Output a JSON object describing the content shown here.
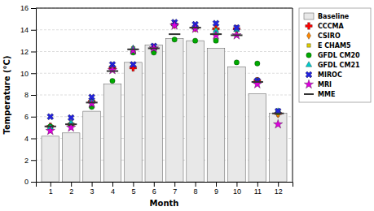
{
  "chart_data": {
    "type": "bar",
    "xlabel": "Month",
    "ylabel": "Temperature (°C)",
    "x": [
      1,
      2,
      3,
      4,
      5,
      6,
      7,
      8,
      9,
      10,
      11,
      12
    ],
    "xlim": [
      0.3,
      12.7
    ],
    "xticks": [
      1,
      2,
      3,
      4,
      5,
      6,
      7,
      8,
      9,
      10,
      11,
      12
    ],
    "ylim": [
      0,
      16
    ],
    "yticks": [
      0,
      2,
      4,
      6,
      8,
      10,
      12,
      14,
      16
    ],
    "grid": true,
    "legend": "right",
    "series": [
      {
        "name": "Baseline",
        "type": "bar",
        "color": "#e8e8e8",
        "values": [
          4.2,
          4.5,
          6.5,
          9.0,
          11.0,
          12.6,
          13.2,
          13.0,
          12.3,
          10.6,
          8.1,
          6.3
        ]
      },
      {
        "name": "CCCMA",
        "type": "scatter",
        "marker": "plus",
        "color": "red",
        "values": [
          5.1,
          5.3,
          7.4,
          10.5,
          10.5,
          12.3,
          14.5,
          14.2,
          14.1,
          14.1,
          9.3,
          6.3
        ]
      },
      {
        "name": "CSIRO",
        "type": "scatter",
        "marker": "diamond",
        "color": "#ff8800",
        "values": [
          4.8,
          5.2,
          7.3,
          10.4,
          12.2,
          12.3,
          14.4,
          14.1,
          13.9,
          13.9,
          9.2,
          6.2
        ]
      },
      {
        "name": "E CHAM5",
        "type": "scatter",
        "marker": "square",
        "color": "#ddcc00",
        "values": [
          5.0,
          5.3,
          7.5,
          10.6,
          12.3,
          12.4,
          14.4,
          14.1,
          14.0,
          14.0,
          9.3,
          6.4
        ]
      },
      {
        "name": "GFDL CM20",
        "type": "scatter",
        "marker": "circle",
        "color": "#00aa00",
        "values": [
          5.1,
          5.3,
          6.9,
          9.3,
          11.9,
          11.9,
          13.1,
          13.0,
          13.0,
          11.0,
          10.9,
          6.4
        ]
      },
      {
        "name": "GFDL CM21",
        "type": "scatter",
        "marker": "triangle",
        "color": "#00cccc",
        "values": [
          5.0,
          5.4,
          7.5,
          10.7,
          12.3,
          12.3,
          14.5,
          14.2,
          13.9,
          14.0,
          9.3,
          6.5
        ]
      },
      {
        "name": "MIROC",
        "type": "scatter",
        "marker": "x",
        "color": "#2222dd",
        "values": [
          6.0,
          5.9,
          7.8,
          10.8,
          10.8,
          12.5,
          14.7,
          14.5,
          14.6,
          14.2,
          9.3,
          6.5
        ]
      },
      {
        "name": "MRI",
        "type": "scatter",
        "marker": "star",
        "color": "#dd00dd",
        "values": [
          4.7,
          5.0,
          7.2,
          10.3,
          12.1,
          12.3,
          14.4,
          14.1,
          13.5,
          13.5,
          9.0,
          5.3
        ]
      },
      {
        "name": "MME",
        "type": "scatter",
        "marker": "dash",
        "color": "#333333",
        "values": [
          5.1,
          5.3,
          7.3,
          10.2,
          12.2,
          12.3,
          13.6,
          14.2,
          13.6,
          13.5,
          9.2,
          6.3
        ]
      }
    ]
  }
}
